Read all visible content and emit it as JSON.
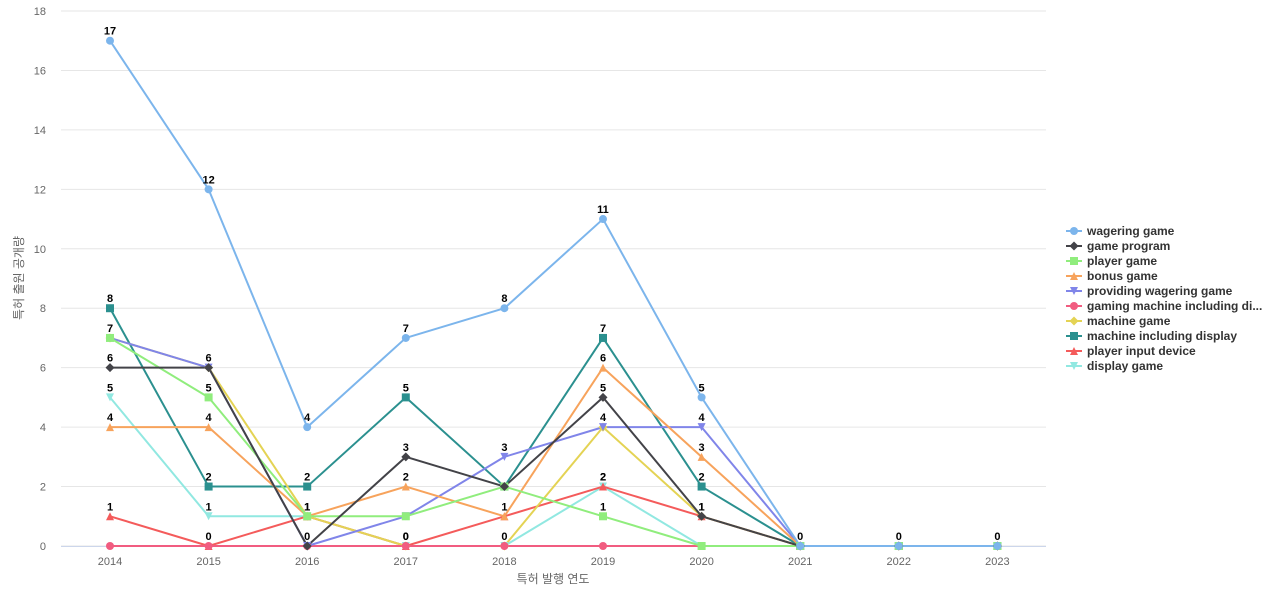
{
  "chart_data": {
    "type": "line",
    "xlabel": "특허 발행 연도",
    "ylabel": "특허 출원 공개량",
    "ylim": [
      0,
      18
    ],
    "yticks": [
      0,
      2,
      4,
      6,
      8,
      10,
      12,
      14,
      16,
      18
    ],
    "grid": true,
    "legend_position": "right",
    "categories": [
      "2014",
      "2015",
      "2016",
      "2017",
      "2018",
      "2019",
      "2020",
      "2021",
      "2022",
      "2023"
    ],
    "series": [
      {
        "name": "wagering game",
        "color": "#7cb5ec",
        "marker": "circle",
        "values": [
          17,
          12,
          4,
          7,
          8,
          11,
          5,
          0,
          0,
          0
        ]
      },
      {
        "name": "game program",
        "color": "#434348",
        "marker": "diamond",
        "values": [
          6,
          6,
          0,
          3,
          2,
          5,
          1,
          0,
          0,
          0
        ]
      },
      {
        "name": "player game",
        "color": "#90ed7d",
        "marker": "square",
        "values": [
          7,
          5,
          1,
          1,
          2,
          1,
          0,
          0,
          0,
          0
        ]
      },
      {
        "name": "bonus game",
        "color": "#f7a35c",
        "marker": "triangle",
        "values": [
          4,
          4,
          1,
          2,
          1,
          6,
          3,
          0,
          0,
          0
        ]
      },
      {
        "name": "providing wagering game",
        "color": "#8085e9",
        "marker": "triangle-down",
        "values": [
          7,
          6,
          0,
          1,
          3,
          4,
          4,
          0,
          0,
          0
        ]
      },
      {
        "name": "gaming machine including di...",
        "color": "#f15c80",
        "marker": "circle",
        "values": [
          0,
          0,
          0,
          0,
          0,
          0,
          0,
          0,
          0,
          0
        ]
      },
      {
        "name": "machine game",
        "color": "#e4d354",
        "marker": "diamond",
        "values": [
          7,
          6,
          1,
          0,
          0,
          4,
          1,
          0,
          0,
          0
        ]
      },
      {
        "name": "machine including display",
        "color": "#2b908f",
        "marker": "square",
        "values": [
          8,
          2,
          2,
          5,
          2,
          7,
          2,
          0,
          0,
          0
        ]
      },
      {
        "name": "player input device",
        "color": "#f45b5b",
        "marker": "triangle",
        "values": [
          1,
          0,
          1,
          0,
          1,
          2,
          1,
          0,
          0,
          0
        ]
      },
      {
        "name": "display game",
        "color": "#91e8e1",
        "marker": "triangle-down",
        "values": [
          5,
          1,
          1,
          0,
          0,
          2,
          0,
          0,
          0,
          0
        ]
      }
    ],
    "data_labels": [
      {
        "series": "wagering game",
        "indices": [
          0,
          1,
          2,
          3,
          4,
          5,
          6,
          7,
          8,
          9
        ]
      },
      {
        "series": "machine including display",
        "indices": [
          0,
          1,
          2,
          3,
          5,
          6
        ]
      },
      {
        "series": "machine game",
        "indices": [
          0
        ]
      },
      {
        "series": "game program",
        "indices": [
          0,
          1,
          2,
          3,
          5,
          6
        ]
      },
      {
        "series": "player game",
        "indices": [
          1,
          5
        ]
      },
      {
        "series": "bonus game",
        "indices": [
          0,
          1,
          3,
          5,
          6
        ]
      },
      {
        "series": "providing wagering game",
        "indices": [
          4,
          5,
          6
        ]
      },
      {
        "series": "player input device",
        "indices": [
          0,
          1,
          2,
          3,
          4,
          5,
          6
        ]
      },
      {
        "series": "display game",
        "indices": [
          0,
          1,
          2,
          3,
          4,
          5
        ]
      }
    ]
  }
}
